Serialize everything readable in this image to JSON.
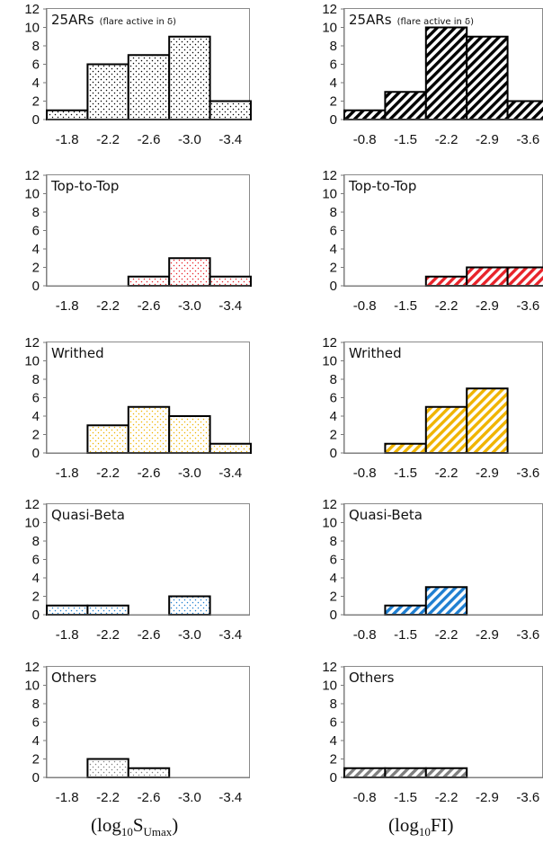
{
  "colors": {
    "all": "#000000",
    "top_to_top": "#e8232a",
    "writhed": "#f0b400",
    "quasi_beta": "#1f7fd1",
    "others": "#808080"
  },
  "axis_labels": {
    "left": {
      "main": "(log",
      "sub1": "10",
      "mid": "S",
      "sub2": "Umax",
      "end": ")"
    },
    "right": {
      "main": "(log",
      "sub1": "10",
      "mid": "FI",
      "end": ")"
    }
  },
  "chart_data": [
    {
      "type": "bar",
      "column": "left",
      "row": 0,
      "title": "25ARs",
      "note": "(flare active in δ)",
      "pattern": "dots",
      "color_key": "all",
      "categories": [
        "-1.8",
        "-2.2",
        "-2.6",
        "-3.0",
        "-3.4"
      ],
      "values": [
        1,
        6,
        7,
        9,
        2
      ],
      "ylim": [
        0,
        12
      ],
      "yticks": [
        0,
        2,
        4,
        6,
        8,
        10,
        12
      ]
    },
    {
      "type": "bar",
      "column": "right",
      "row": 0,
      "title": "25ARs",
      "note": "(flare active in δ)",
      "pattern": "hatch",
      "color_key": "all",
      "categories": [
        "-0.8",
        "-1.5",
        "-2.2",
        "-2.9",
        "-3.6"
      ],
      "values": [
        1,
        3,
        10,
        9,
        2
      ],
      "ylim": [
        0,
        12
      ],
      "yticks": [
        0,
        2,
        4,
        6,
        8,
        10,
        12
      ]
    },
    {
      "type": "bar",
      "column": "left",
      "row": 1,
      "title": "Top-to-Top",
      "pattern": "dots",
      "color_key": "top_to_top",
      "categories": [
        "-1.8",
        "-2.2",
        "-2.6",
        "-3.0",
        "-3.4"
      ],
      "values": [
        0,
        0,
        1,
        3,
        1
      ],
      "ylim": [
        0,
        12
      ],
      "yticks": [
        0,
        2,
        4,
        6,
        8,
        10,
        12
      ]
    },
    {
      "type": "bar",
      "column": "right",
      "row": 1,
      "title": "Top-to-Top",
      "pattern": "hatch",
      "color_key": "top_to_top",
      "categories": [
        "-0.8",
        "-1.5",
        "-2.2",
        "-2.9",
        "-3.6"
      ],
      "values": [
        0,
        0,
        1,
        2,
        2
      ],
      "ylim": [
        0,
        12
      ],
      "yticks": [
        0,
        2,
        4,
        6,
        8,
        10,
        12
      ]
    },
    {
      "type": "bar",
      "column": "left",
      "row": 2,
      "title": "Writhed",
      "pattern": "dots",
      "color_key": "writhed",
      "categories": [
        "-1.8",
        "-2.2",
        "-2.6",
        "-3.0",
        "-3.4"
      ],
      "values": [
        0,
        3,
        5,
        4,
        1
      ],
      "ylim": [
        0,
        12
      ],
      "yticks": [
        0,
        2,
        4,
        6,
        8,
        10,
        12
      ]
    },
    {
      "type": "bar",
      "column": "right",
      "row": 2,
      "title": "Writhed",
      "pattern": "hatch",
      "color_key": "writhed",
      "categories": [
        "-0.8",
        "-1.5",
        "-2.2",
        "-2.9",
        "-3.6"
      ],
      "values": [
        0,
        1,
        5,
        7,
        0
      ],
      "ylim": [
        0,
        12
      ],
      "yticks": [
        0,
        2,
        4,
        6,
        8,
        10,
        12
      ]
    },
    {
      "type": "bar",
      "column": "left",
      "row": 3,
      "title": "Quasi-Beta",
      "pattern": "dots",
      "color_key": "quasi_beta",
      "categories": [
        "-1.8",
        "-2.2",
        "-2.6",
        "-3.0",
        "-3.4"
      ],
      "values": [
        1,
        1,
        0,
        2,
        0
      ],
      "ylim": [
        0,
        12
      ],
      "yticks": [
        0,
        2,
        4,
        6,
        8,
        10,
        12
      ]
    },
    {
      "type": "bar",
      "column": "right",
      "row": 3,
      "title": "Quasi-Beta",
      "pattern": "hatch",
      "color_key": "quasi_beta",
      "categories": [
        "-0.8",
        "-1.5",
        "-2.2",
        "-2.9",
        "-3.6"
      ],
      "values": [
        0,
        1,
        3,
        0,
        0
      ],
      "ylim": [
        0,
        12
      ],
      "yticks": [
        0,
        2,
        4,
        6,
        8,
        10,
        12
      ]
    },
    {
      "type": "bar",
      "column": "left",
      "row": 4,
      "title": "Others",
      "pattern": "dots",
      "color_key": "others",
      "categories": [
        "-1.8",
        "-2.2",
        "-2.6",
        "-3.0",
        "-3.4"
      ],
      "values": [
        0,
        2,
        1,
        0,
        0
      ],
      "ylim": [
        0,
        12
      ],
      "yticks": [
        0,
        2,
        4,
        6,
        8,
        10,
        12
      ]
    },
    {
      "type": "bar",
      "column": "right",
      "row": 4,
      "title": "Others",
      "pattern": "hatch",
      "color_key": "others",
      "categories": [
        "-0.8",
        "-1.5",
        "-2.2",
        "-2.9",
        "-3.6"
      ],
      "values": [
        1,
        1,
        1,
        0,
        0
      ],
      "ylim": [
        0,
        12
      ],
      "yticks": [
        0,
        2,
        4,
        6,
        8,
        10,
        12
      ]
    }
  ]
}
